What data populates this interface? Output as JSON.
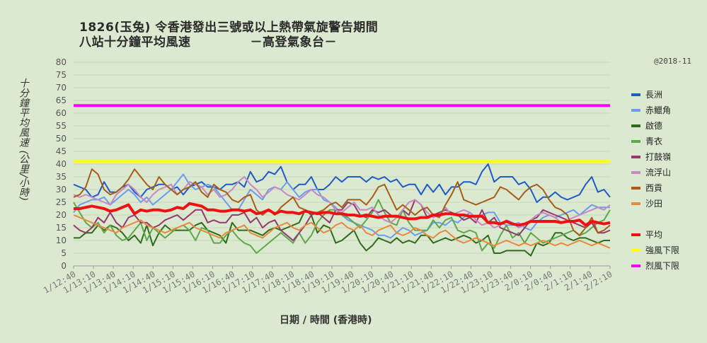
{
  "header": {
    "title_line1": "1826(玉兔)  令香港發出三號或以上熱帶氣旋警告期間",
    "title_line2": "八站十分鐘平均風速",
    "source": "－高登氣象台－",
    "copyright": "@2018-11"
  },
  "chart_data": {
    "type": "line",
    "xlabel": "日期  /  時間  (香港時)",
    "ylabel": "十分鐘平均風速  (公里/小時)",
    "ylim": [
      0,
      80
    ],
    "yticks": [
      0,
      5,
      10,
      15,
      20,
      25,
      30,
      35,
      40,
      45,
      50,
      55,
      60,
      65,
      70,
      75,
      80
    ],
    "grid": true,
    "legend_position": "right",
    "x_tick_labels": [
      "1/12:40",
      "1/13:10",
      "1/13:40",
      "1/14:10",
      "1/14:40",
      "1/15:10",
      "1/15:40",
      "1/16:10",
      "1/16:40",
      "1/17:10",
      "1/17:40",
      "1/18:10",
      "1/18:40",
      "1/19:10",
      "1/19:40",
      "1/20:10",
      "1/20:40",
      "1/21:10",
      "1/21:40",
      "1/22:10",
      "1/22:40",
      "1/23:10",
      "1/23:40",
      "2/0:10",
      "2/0:40",
      "2/1:10",
      "2/1:40",
      "2/2:10"
    ],
    "series": [
      {
        "name": "長洲",
        "color": "#1f5bc6",
        "width": 2,
        "values": [
          32,
          31,
          30,
          27,
          28,
          33,
          29,
          29,
          31,
          32,
          29,
          27,
          30,
          31,
          32,
          32,
          30,
          31,
          28,
          31,
          32,
          33,
          31,
          31,
          30,
          32,
          32,
          33,
          31,
          37,
          33,
          34,
          37,
          36,
          39,
          33,
          30,
          32,
          32,
          35,
          30,
          30,
          32,
          35,
          33,
          35,
          35,
          35,
          33,
          35,
          34,
          35,
          33,
          34,
          31,
          32,
          32,
          28,
          32,
          29,
          32,
          28,
          31,
          31,
          33,
          33,
          32,
          37,
          40,
          33,
          35,
          35,
          35,
          32,
          33,
          30,
          25,
          27,
          27,
          29,
          27,
          26,
          27,
          28,
          32,
          35,
          29,
          30,
          27
        ]
      },
      {
        "name": "赤鱲角",
        "color": "#6c9cf0",
        "width": 2,
        "values": [
          21,
          24,
          25,
          26,
          26,
          27,
          24,
          26,
          28,
          30,
          28,
          25,
          27,
          24,
          26,
          28,
          30,
          33,
          36,
          32,
          30,
          31,
          32,
          31,
          28,
          25,
          22,
          22,
          26,
          30,
          28,
          26,
          30,
          31,
          30,
          33,
          30,
          27,
          29,
          30,
          30,
          26,
          25,
          23,
          20,
          18,
          17,
          16,
          15,
          14,
          12,
          12,
          11,
          13,
          15,
          14,
          12,
          13,
          14,
          17,
          17,
          16,
          18,
          17,
          19,
          21,
          19,
          20,
          21,
          21,
          17,
          16,
          16,
          17,
          15,
          14,
          17,
          19,
          20,
          19,
          20,
          21,
          22,
          20,
          22,
          24,
          23,
          23,
          23
        ]
      },
      {
        "name": "啟德",
        "color": "#2f6b1a",
        "width": 2,
        "values": [
          11,
          11,
          13,
          13,
          16,
          14,
          16,
          15,
          13,
          10,
          12,
          9,
          16,
          8,
          13,
          16,
          14,
          14,
          14,
          14,
          16,
          17,
          14,
          13,
          12,
          9,
          17,
          14,
          14,
          14,
          13,
          12,
          14,
          15,
          14,
          15,
          16,
          17,
          22,
          20,
          13,
          16,
          15,
          9,
          10,
          12,
          14,
          9,
          6,
          8,
          11,
          10,
          9,
          11,
          9,
          10,
          9,
          12,
          12,
          9,
          10,
          11,
          10,
          11,
          12,
          11,
          9,
          10,
          12,
          5,
          5,
          6,
          6,
          6,
          6,
          4,
          9,
          8,
          9,
          13,
          13,
          11,
          10,
          11,
          11,
          10,
          9,
          10,
          10
        ]
      },
      {
        "name": "青衣",
        "color": "#5fa84a",
        "width": 2,
        "values": [
          25,
          21,
          17,
          15,
          17,
          13,
          16,
          12,
          10,
          11,
          14,
          17,
          10,
          15,
          13,
          11,
          13,
          15,
          16,
          14,
          10,
          15,
          14,
          9,
          9,
          12,
          14,
          11,
          9,
          8,
          5,
          7,
          9,
          11,
          13,
          11,
          9,
          13,
          9,
          12,
          17,
          20,
          22,
          22,
          20,
          19,
          17,
          15,
          18,
          21,
          26,
          21,
          17,
          16,
          22,
          17,
          14,
          14,
          14,
          18,
          15,
          18,
          19,
          14,
          13,
          14,
          13,
          6,
          9,
          7,
          12,
          16,
          11,
          13,
          9,
          13,
          11,
          9,
          10,
          11,
          12,
          13,
          14,
          12,
          13,
          15,
          17,
          18,
          22
        ]
      },
      {
        "name": "打鼓嶺",
        "color": "#943a6c",
        "width": 2,
        "values": [
          16,
          14,
          13,
          15,
          19,
          17,
          21,
          17,
          15,
          19,
          20,
          17,
          17,
          15,
          16,
          18,
          19,
          20,
          18,
          20,
          22,
          22,
          17,
          18,
          17,
          17,
          20,
          20,
          21,
          17,
          19,
          15,
          17,
          18,
          14,
          12,
          10,
          13,
          16,
          20,
          21,
          19,
          17,
          22,
          22,
          25,
          24,
          20,
          19,
          22,
          21,
          22,
          20,
          19,
          22,
          20,
          26,
          24,
          19,
          20,
          21,
          22,
          21,
          20,
          18,
          19,
          17,
          22,
          17,
          19,
          15,
          14,
          13,
          12,
          15,
          18,
          19,
          22,
          21,
          20,
          19,
          18,
          17,
          16,
          15,
          17,
          13,
          13,
          14
        ]
      },
      {
        "name": "流浮山",
        "color": "#c789c0",
        "width": 2,
        "values": [
          28,
          27,
          28,
          27,
          26,
          25,
          24,
          28,
          30,
          32,
          30,
          27,
          25,
          28,
          30,
          31,
          32,
          28,
          30,
          33,
          32,
          31,
          28,
          30,
          27,
          28,
          30,
          33,
          35,
          32,
          30,
          27,
          29,
          31,
          30,
          28,
          27,
          26,
          28,
          30,
          28,
          27,
          25,
          22,
          21,
          23,
          25,
          22,
          22,
          23,
          20,
          18,
          17,
          19,
          22,
          25,
          26,
          24,
          21,
          19,
          20,
          23,
          20,
          21,
          22,
          21,
          18,
          16,
          17,
          15,
          16,
          18,
          17,
          15,
          16,
          18,
          20,
          21,
          20,
          19,
          17,
          18,
          19,
          20,
          21,
          22,
          23,
          22,
          24
        ]
      },
      {
        "name": "西貢",
        "color": "#a35f17",
        "width": 2,
        "values": [
          27,
          28,
          31,
          38,
          36,
          30,
          28,
          29,
          31,
          34,
          38,
          35,
          32,
          30,
          35,
          32,
          30,
          28,
          30,
          31,
          33,
          29,
          27,
          32,
          30,
          29,
          26,
          25,
          27,
          28,
          22,
          20,
          22,
          20,
          23,
          25,
          27,
          23,
          22,
          21,
          21,
          22,
          24,
          25,
          23,
          26,
          26,
          26,
          24,
          27,
          31,
          32,
          27,
          22,
          24,
          22,
          20,
          22,
          23,
          20,
          19,
          24,
          28,
          33,
          26,
          25,
          24,
          25,
          26,
          27,
          31,
          30,
          28,
          26,
          29,
          31,
          32,
          30,
          26,
          23,
          22,
          20,
          14,
          12,
          15,
          19,
          13,
          14,
          16
        ]
      },
      {
        "name": "沙田",
        "color": "#e88a3c",
        "width": 2,
        "values": [
          20,
          19,
          18,
          17,
          16,
          15,
          14,
          13,
          15,
          16,
          17,
          18,
          16,
          15,
          14,
          13,
          14,
          15,
          16,
          17,
          15,
          14,
          13,
          12,
          11,
          13,
          14,
          15,
          16,
          13,
          12,
          11,
          13,
          15,
          16,
          17,
          15,
          14,
          16,
          17,
          15,
          13,
          14,
          16,
          17,
          15,
          14,
          16,
          13,
          12,
          14,
          15,
          16,
          13,
          12,
          13,
          15,
          14,
          12,
          11,
          13,
          14,
          12,
          10,
          9,
          10,
          11,
          10,
          9,
          8,
          9,
          10,
          9,
          8,
          9,
          8,
          9,
          10,
          9,
          8,
          9,
          8,
          9,
          10,
          9,
          8,
          9,
          8,
          7
        ]
      },
      {
        "name": "平均",
        "color": "#ee1111",
        "width": 4,
        "values": [
          22.5,
          22.5,
          23,
          23.5,
          23,
          22.5,
          21.5,
          22,
          23,
          24,
          20.5,
          22,
          21.5,
          22,
          22,
          21.5,
          22,
          23,
          22.5,
          24.5,
          24,
          23.5,
          22,
          22,
          21.5,
          21.5,
          22,
          22,
          21.5,
          22,
          20.5,
          21,
          22,
          20.5,
          21.5,
          21,
          21,
          20.5,
          21.5,
          21,
          20.5,
          21,
          21,
          20.5,
          20.5,
          20,
          20,
          19.5,
          20,
          19.5,
          19,
          19.5,
          19.5,
          19.5,
          19,
          18.5,
          18.5,
          19,
          19,
          20,
          20,
          20.5,
          20.5,
          20,
          20,
          19.5,
          19.5,
          19.5,
          17,
          17,
          16.5,
          17.5,
          16.5,
          16,
          16.5,
          17.5,
          17.5,
          17.5,
          17.5,
          17.5,
          17,
          17.5,
          17.5,
          18,
          16,
          17.5,
          17,
          16.5,
          17
        ]
      },
      {
        "name": "強風下限",
        "color": "#ffff00",
        "width": 4,
        "constant": 41
      },
      {
        "name": "烈風下限",
        "color": "#ff00ff",
        "width": 4,
        "constant": 63
      }
    ]
  }
}
